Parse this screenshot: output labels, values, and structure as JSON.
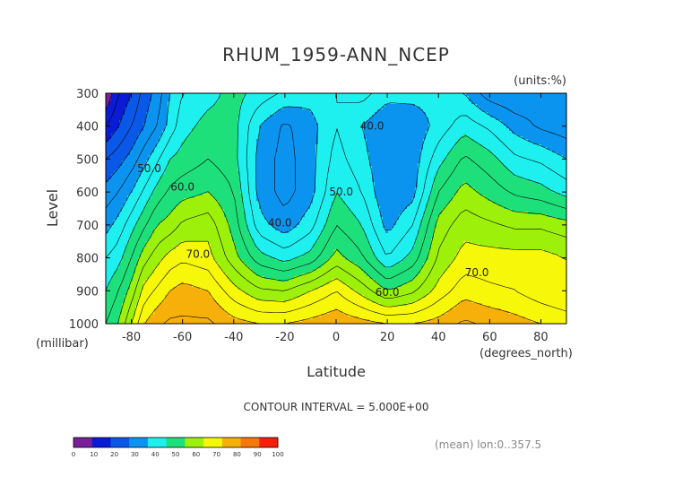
{
  "chart_data": {
    "type": "heatmap",
    "title": "RHUM_1959-ANN_NCEP",
    "units": "(units:%)",
    "xlabel": "Latitude",
    "ylabel": "Level",
    "x_unit_label": "(degrees_north)",
    "y_unit_label": "(millibar)",
    "x_ticks": [
      "-80",
      "-60",
      "-40",
      "-20",
      "0",
      "20",
      "40",
      "60",
      "80"
    ],
    "x_tick_values": [
      -80,
      -60,
      -40,
      -20,
      0,
      20,
      40,
      60,
      80
    ],
    "y_ticks": [
      "300",
      "400",
      "500",
      "600",
      "700",
      "800",
      "900",
      "1000"
    ],
    "y_tick_values": [
      300,
      400,
      500,
      600,
      700,
      800,
      900,
      1000
    ],
    "xlim": [
      -90,
      90
    ],
    "ylim": [
      1000,
      300
    ],
    "contour_interval": "CONTOUR INTERVAL = 5.000E+00",
    "footer": "(mean) lon:0..357.5",
    "contour_labels": [
      {
        "text": "50.0",
        "lat": -73,
        "p": 540
      },
      {
        "text": "60.0",
        "lat": -60,
        "p": 595
      },
      {
        "text": "70.0",
        "lat": -54,
        "p": 800
      },
      {
        "text": "40.0",
        "lat": -22,
        "p": 705
      },
      {
        "text": "50.0",
        "lat": 2,
        "p": 610
      },
      {
        "text": "40.0",
        "lat": 14,
        "p": 410
      },
      {
        "text": "60.0",
        "lat": 20,
        "p": 915
      },
      {
        "text": "70.0",
        "lat": 55,
        "p": 855
      }
    ],
    "levels": [
      0,
      10,
      20,
      30,
      40,
      50,
      60,
      70,
      80,
      90,
      100
    ],
    "colorbar": {
      "colors": [
        "#7a1f9c",
        "#0a1bd6",
        "#0a58e8",
        "#0a94f0",
        "#1eefef",
        "#1ee07a",
        "#9cf00a",
        "#f7f70a",
        "#f7b00a",
        "#f7780a",
        "#f71e0a"
      ],
      "tick_labels": [
        "0",
        "10",
        "20",
        "30",
        "40",
        "50",
        "60",
        "70",
        "80",
        "90",
        "100"
      ]
    },
    "field": {
      "x": [
        -90,
        -85,
        -80,
        -75,
        -70,
        -65,
        -60,
        -50,
        -40,
        -30,
        -20,
        -10,
        0,
        10,
        20,
        30,
        40,
        50,
        60,
        70,
        80,
        90
      ],
      "y": [
        300,
        400,
        500,
        600,
        700,
        800,
        900,
        1000
      ],
      "values": [
        [
          5,
          15,
          20,
          27,
          32,
          40,
          45,
          48,
          52,
          48,
          44,
          42,
          45,
          47,
          42,
          42,
          42,
          40,
          32,
          30,
          32,
          30
        ],
        [
          15,
          20,
          25,
          30,
          35,
          42,
          48,
          52,
          52,
          40,
          34,
          38,
          45,
          40,
          35,
          36,
          42,
          48,
          44,
          38,
          34,
          32
        ],
        [
          25,
          28,
          32,
          38,
          44,
          50,
          52,
          55,
          52,
          38,
          33,
          38,
          47,
          42,
          35,
          37,
          48,
          56,
          52,
          46,
          44,
          40
        ],
        [
          32,
          35,
          40,
          46,
          52,
          56,
          58,
          60,
          55,
          38,
          33,
          38,
          50,
          45,
          35,
          38,
          55,
          62,
          58,
          54,
          52,
          48
        ],
        [
          38,
          42,
          48,
          54,
          60,
          62,
          66,
          68,
          58,
          42,
          37,
          43,
          55,
          50,
          38,
          45,
          62,
          68,
          66,
          64,
          64,
          62
        ],
        [
          45,
          48,
          55,
          63,
          68,
          72,
          74,
          72,
          62,
          52,
          48,
          52,
          62,
          56,
          45,
          52,
          66,
          72,
          72,
          72,
          72,
          70
        ],
        [
          50,
          55,
          62,
          72,
          76,
          80,
          82,
          80,
          72,
          66,
          65,
          70,
          75,
          68,
          60,
          64,
          72,
          78,
          76,
          75,
          72,
          70
        ],
        [
          55,
          60,
          70,
          80,
          84,
          86,
          86,
          86,
          82,
          80,
          80,
          82,
          84,
          82,
          80,
          80,
          82,
          86,
          84,
          82,
          80,
          78
        ]
      ]
    }
  }
}
